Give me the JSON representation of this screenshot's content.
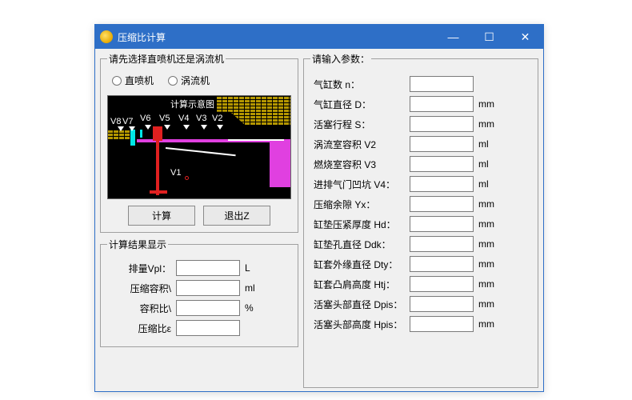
{
  "window": {
    "title": "压缩比计算",
    "titlebar_bg": "#2e6fc7",
    "titlebar_fg": "#ffffff"
  },
  "titlebar_buttons": {
    "minimize": "—",
    "maximize": "☐",
    "close": "✕"
  },
  "engine_select": {
    "legend": "请先选择直喷机还是涡流机",
    "options": {
      "direct": "直喷机",
      "swirl": "涡流机"
    },
    "diagram_title": "计算示意图",
    "labels": {
      "v8": "V8",
      "v7": "V7",
      "v6": "V6",
      "v5": "V5",
      "v4": "V4",
      "v3": "V3",
      "v2": "V2",
      "v1": "V1"
    },
    "buttons": {
      "calc": "计算",
      "exit": "退出Z"
    }
  },
  "results": {
    "legend": "计算结果显示",
    "rows": [
      {
        "label": "排量Vpl：",
        "value": "",
        "unit": "L"
      },
      {
        "label": "压缩容积\\",
        "value": "",
        "unit": "ml"
      },
      {
        "label": "容积比\\",
        "value": "",
        "unit": "%"
      },
      {
        "label": "压缩比ε",
        "value": "",
        "unit": ""
      }
    ]
  },
  "params": {
    "legend": "请输入参数：",
    "rows": [
      {
        "label": "气缸数 n：",
        "value": "",
        "unit": ""
      },
      {
        "label": "气缸直径 D：",
        "value": "",
        "unit": "mm"
      },
      {
        "label": "活塞行程 S：",
        "value": "",
        "unit": "mm"
      },
      {
        "label": "涡流室容积 V2",
        "value": "",
        "unit": "ml"
      },
      {
        "label": "燃烧室容积 V3",
        "value": "",
        "unit": "ml"
      },
      {
        "label": "进排气门凹坑 V4：",
        "value": "",
        "unit": "ml"
      },
      {
        "label": "压缩余隙 Yx：",
        "value": "",
        "unit": "mm"
      },
      {
        "label": "缸垫压紧厚度 Hd：",
        "value": "",
        "unit": "mm"
      },
      {
        "label": "缸垫孔直径 Ddk：",
        "value": "",
        "unit": "mm"
      },
      {
        "label": "缸套外缘直径 Dty：",
        "value": "",
        "unit": "mm"
      },
      {
        "label": "缸套凸肩高度 Htj：",
        "value": "",
        "unit": "mm"
      },
      {
        "label": "活塞头部直径 Dpis：",
        "value": "",
        "unit": "mm"
      },
      {
        "label": "活塞头部高度 Hpis：",
        "value": "",
        "unit": "mm"
      }
    ]
  }
}
